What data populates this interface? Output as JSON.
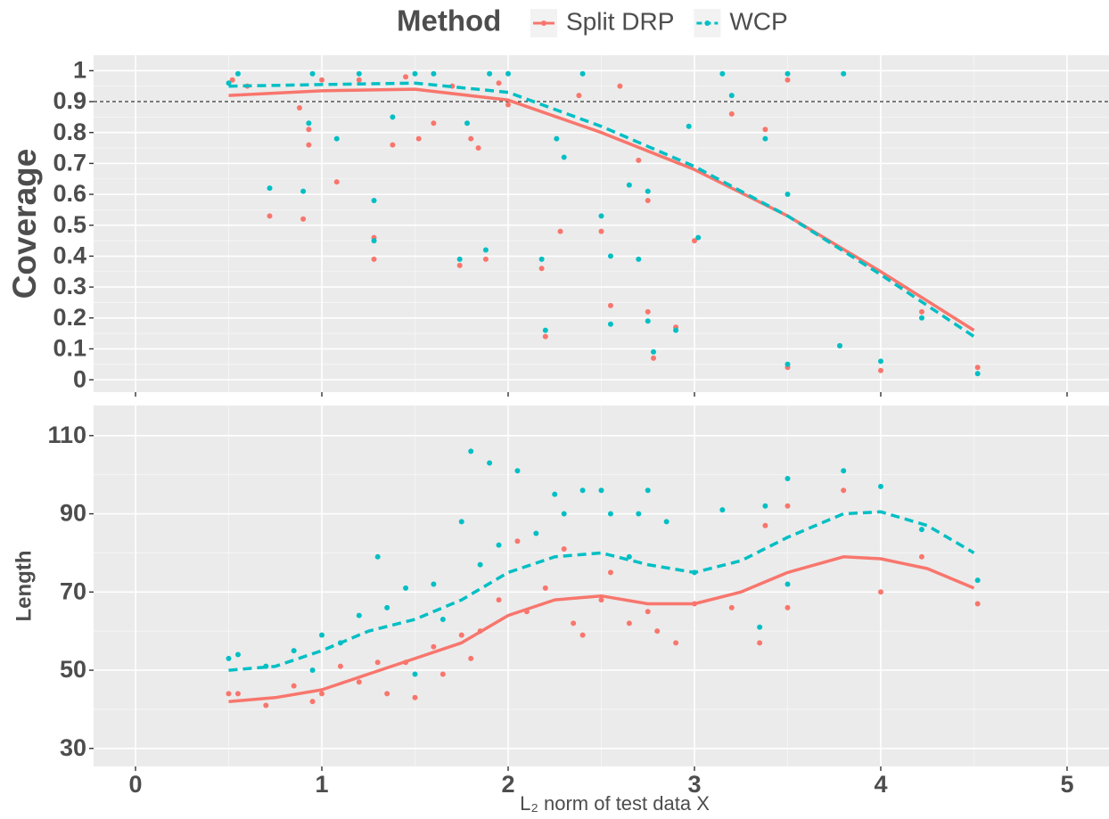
{
  "chart_data": [
    {
      "type": "scatter",
      "legend_title": "Method",
      "ylabel": "Coverage",
      "xlim": [
        -0.225,
        5.225
      ],
      "xticks": [
        0,
        1,
        2,
        3,
        4,
        5
      ],
      "ylim": [
        -0.04,
        1.05
      ],
      "yticks": [
        0,
        0.1,
        0.2,
        0.3,
        0.4,
        0.5,
        0.6,
        0.7,
        0.8,
        0.9,
        1
      ],
      "hline": 0.9,
      "grid": true,
      "series": [
        {
          "name": "Split DRP",
          "color": "#F8766D",
          "dash": "solid",
          "x": [
            0.52,
            0.6,
            0.72,
            0.88,
            0.9,
            0.93,
            0.93,
            1.0,
            1.08,
            1.2,
            1.28,
            1.28,
            1.38,
            1.45,
            1.52,
            1.6,
            1.7,
            1.74,
            1.8,
            1.84,
            1.88,
            1.95,
            2.0,
            2.18,
            2.2,
            2.28,
            2.38,
            2.5,
            2.55,
            2.6,
            2.7,
            2.75,
            2.75,
            2.78,
            2.9,
            3.0,
            3.2,
            3.38,
            3.5,
            3.5,
            3.78,
            4.0,
            4.22,
            4.52
          ],
          "values": [
            0.97,
            0.95,
            0.53,
            0.88,
            0.52,
            0.76,
            0.81,
            0.97,
            0.64,
            0.97,
            0.39,
            0.46,
            0.76,
            0.98,
            0.78,
            0.83,
            0.95,
            0.37,
            0.78,
            0.75,
            0.39,
            0.96,
            0.89,
            0.36,
            0.14,
            0.48,
            0.92,
            0.48,
            0.24,
            0.95,
            0.71,
            0.58,
            0.22,
            0.07,
            0.17,
            0.45,
            0.86,
            0.81,
            0.04,
            0.97,
            0.11,
            0.03,
            0.22,
            0.04
          ],
          "smooth_x": [
            0.5,
            1,
            1.5,
            2,
            2.5,
            3,
            3.5,
            4,
            4.5
          ],
          "smooth_values": [
            0.92,
            0.935,
            0.94,
            0.905,
            0.8,
            0.68,
            0.53,
            0.35,
            0.16
          ]
        },
        {
          "name": "WCP",
          "color": "#00BFC4",
          "dash": "dashed",
          "x": [
            0.5,
            0.55,
            0.72,
            0.9,
            0.93,
            0.95,
            1.08,
            1.2,
            1.28,
            1.28,
            1.38,
            1.5,
            1.6,
            1.74,
            1.78,
            1.88,
            1.9,
            2.0,
            2.18,
            2.2,
            2.26,
            2.3,
            2.4,
            2.5,
            2.55,
            2.55,
            2.65,
            2.7,
            2.75,
            2.75,
            2.78,
            2.9,
            2.97,
            3.02,
            3.15,
            3.2,
            3.38,
            3.5,
            3.5,
            3.5,
            3.8,
            3.78,
            4.0,
            4.22,
            4.52
          ],
          "values": [
            0.96,
            0.99,
            0.62,
            0.61,
            0.83,
            0.99,
            0.78,
            0.99,
            0.58,
            0.45,
            0.85,
            0.99,
            0.99,
            0.39,
            0.83,
            0.42,
            0.99,
            0.99,
            0.39,
            0.16,
            0.78,
            0.72,
            0.99,
            0.53,
            0.4,
            0.18,
            0.63,
            0.39,
            0.61,
            0.19,
            0.09,
            0.16,
            0.82,
            0.46,
            0.99,
            0.92,
            0.78,
            0.99,
            0.05,
            0.6,
            0.99,
            0.11,
            0.06,
            0.2,
            0.02
          ],
          "smooth_x": [
            0.5,
            1,
            1.5,
            2,
            2.5,
            3,
            3.5,
            4,
            4.5
          ],
          "smooth_values": [
            0.95,
            0.955,
            0.96,
            0.93,
            0.82,
            0.69,
            0.53,
            0.34,
            0.14
          ]
        }
      ]
    },
    {
      "type": "scatter",
      "ylabel": "Length",
      "xlabel": "L₂ norm of test data X",
      "xlim": [
        -0.225,
        5.225
      ],
      "xticks": [
        0,
        1,
        2,
        3,
        4,
        5
      ],
      "ylim": [
        25.4,
        117.7
      ],
      "yticks": [
        30,
        50,
        70,
        90,
        110
      ],
      "grid": true,
      "series": [
        {
          "name": "Split DRP",
          "color": "#F8766D",
          "dash": "solid",
          "x": [
            0.5,
            0.55,
            0.7,
            0.85,
            0.95,
            1.0,
            1.1,
            1.2,
            1.3,
            1.35,
            1.45,
            1.5,
            1.6,
            1.65,
            1.75,
            1.8,
            1.85,
            1.95,
            2.05,
            2.1,
            2.2,
            2.3,
            2.35,
            2.4,
            2.5,
            2.55,
            2.65,
            2.75,
            2.8,
            2.9,
            3.0,
            3.2,
            3.35,
            3.38,
            3.5,
            3.5,
            3.8,
            4.0,
            4.22,
            4.52
          ],
          "values": [
            44,
            44,
            41,
            46,
            42,
            44,
            51,
            47,
            52,
            44,
            52,
            43,
            56,
            49,
            59,
            53,
            60,
            68,
            83,
            65,
            71,
            81,
            62,
            59,
            68,
            75,
            62,
            65,
            60,
            57,
            67,
            66,
            57,
            87,
            66,
            92,
            96,
            70,
            79,
            67
          ],
          "smooth_x": [
            0.5,
            0.75,
            1,
            1.25,
            1.5,
            1.75,
            2,
            2.25,
            2.5,
            2.75,
            3,
            3.25,
            3.5,
            3.8,
            4,
            4.25,
            4.5
          ],
          "smooth_values": [
            42,
            43,
            45,
            49,
            53,
            57,
            64,
            68,
            69,
            67,
            67,
            70,
            75,
            79,
            78.5,
            76,
            71
          ]
        },
        {
          "name": "WCP",
          "color": "#00BFC4",
          "dash": "dashed",
          "x": [
            0.5,
            0.55,
            0.7,
            0.85,
            0.95,
            1.0,
            1.1,
            1.2,
            1.3,
            1.35,
            1.45,
            1.5,
            1.6,
            1.65,
            1.75,
            1.8,
            1.85,
            1.9,
            1.95,
            2.05,
            2.15,
            2.25,
            2.3,
            2.4,
            2.5,
            2.55,
            2.65,
            2.7,
            2.75,
            2.85,
            3.0,
            3.15,
            3.35,
            3.38,
            3.5,
            3.5,
            3.8,
            4.0,
            4.22,
            4.52
          ],
          "values": [
            53,
            54,
            51,
            55,
            50,
            59,
            57,
            64,
            79,
            66,
            71,
            49,
            72,
            63,
            88,
            106,
            77,
            103,
            82,
            101,
            85,
            95,
            90,
            96,
            96,
            90,
            79,
            90,
            96,
            88,
            75,
            91,
            61,
            92,
            99,
            72,
            101,
            97,
            86,
            73
          ],
          "smooth_x": [
            0.5,
            0.75,
            1,
            1.25,
            1.5,
            1.75,
            2,
            2.25,
            2.5,
            2.75,
            3,
            3.25,
            3.5,
            3.8,
            4,
            4.25,
            4.5
          ],
          "smooth_values": [
            50,
            51,
            55,
            60,
            63,
            68,
            75,
            79,
            80,
            77,
            75,
            78,
            84,
            90,
            90.5,
            87,
            80
          ]
        }
      ]
    }
  ]
}
